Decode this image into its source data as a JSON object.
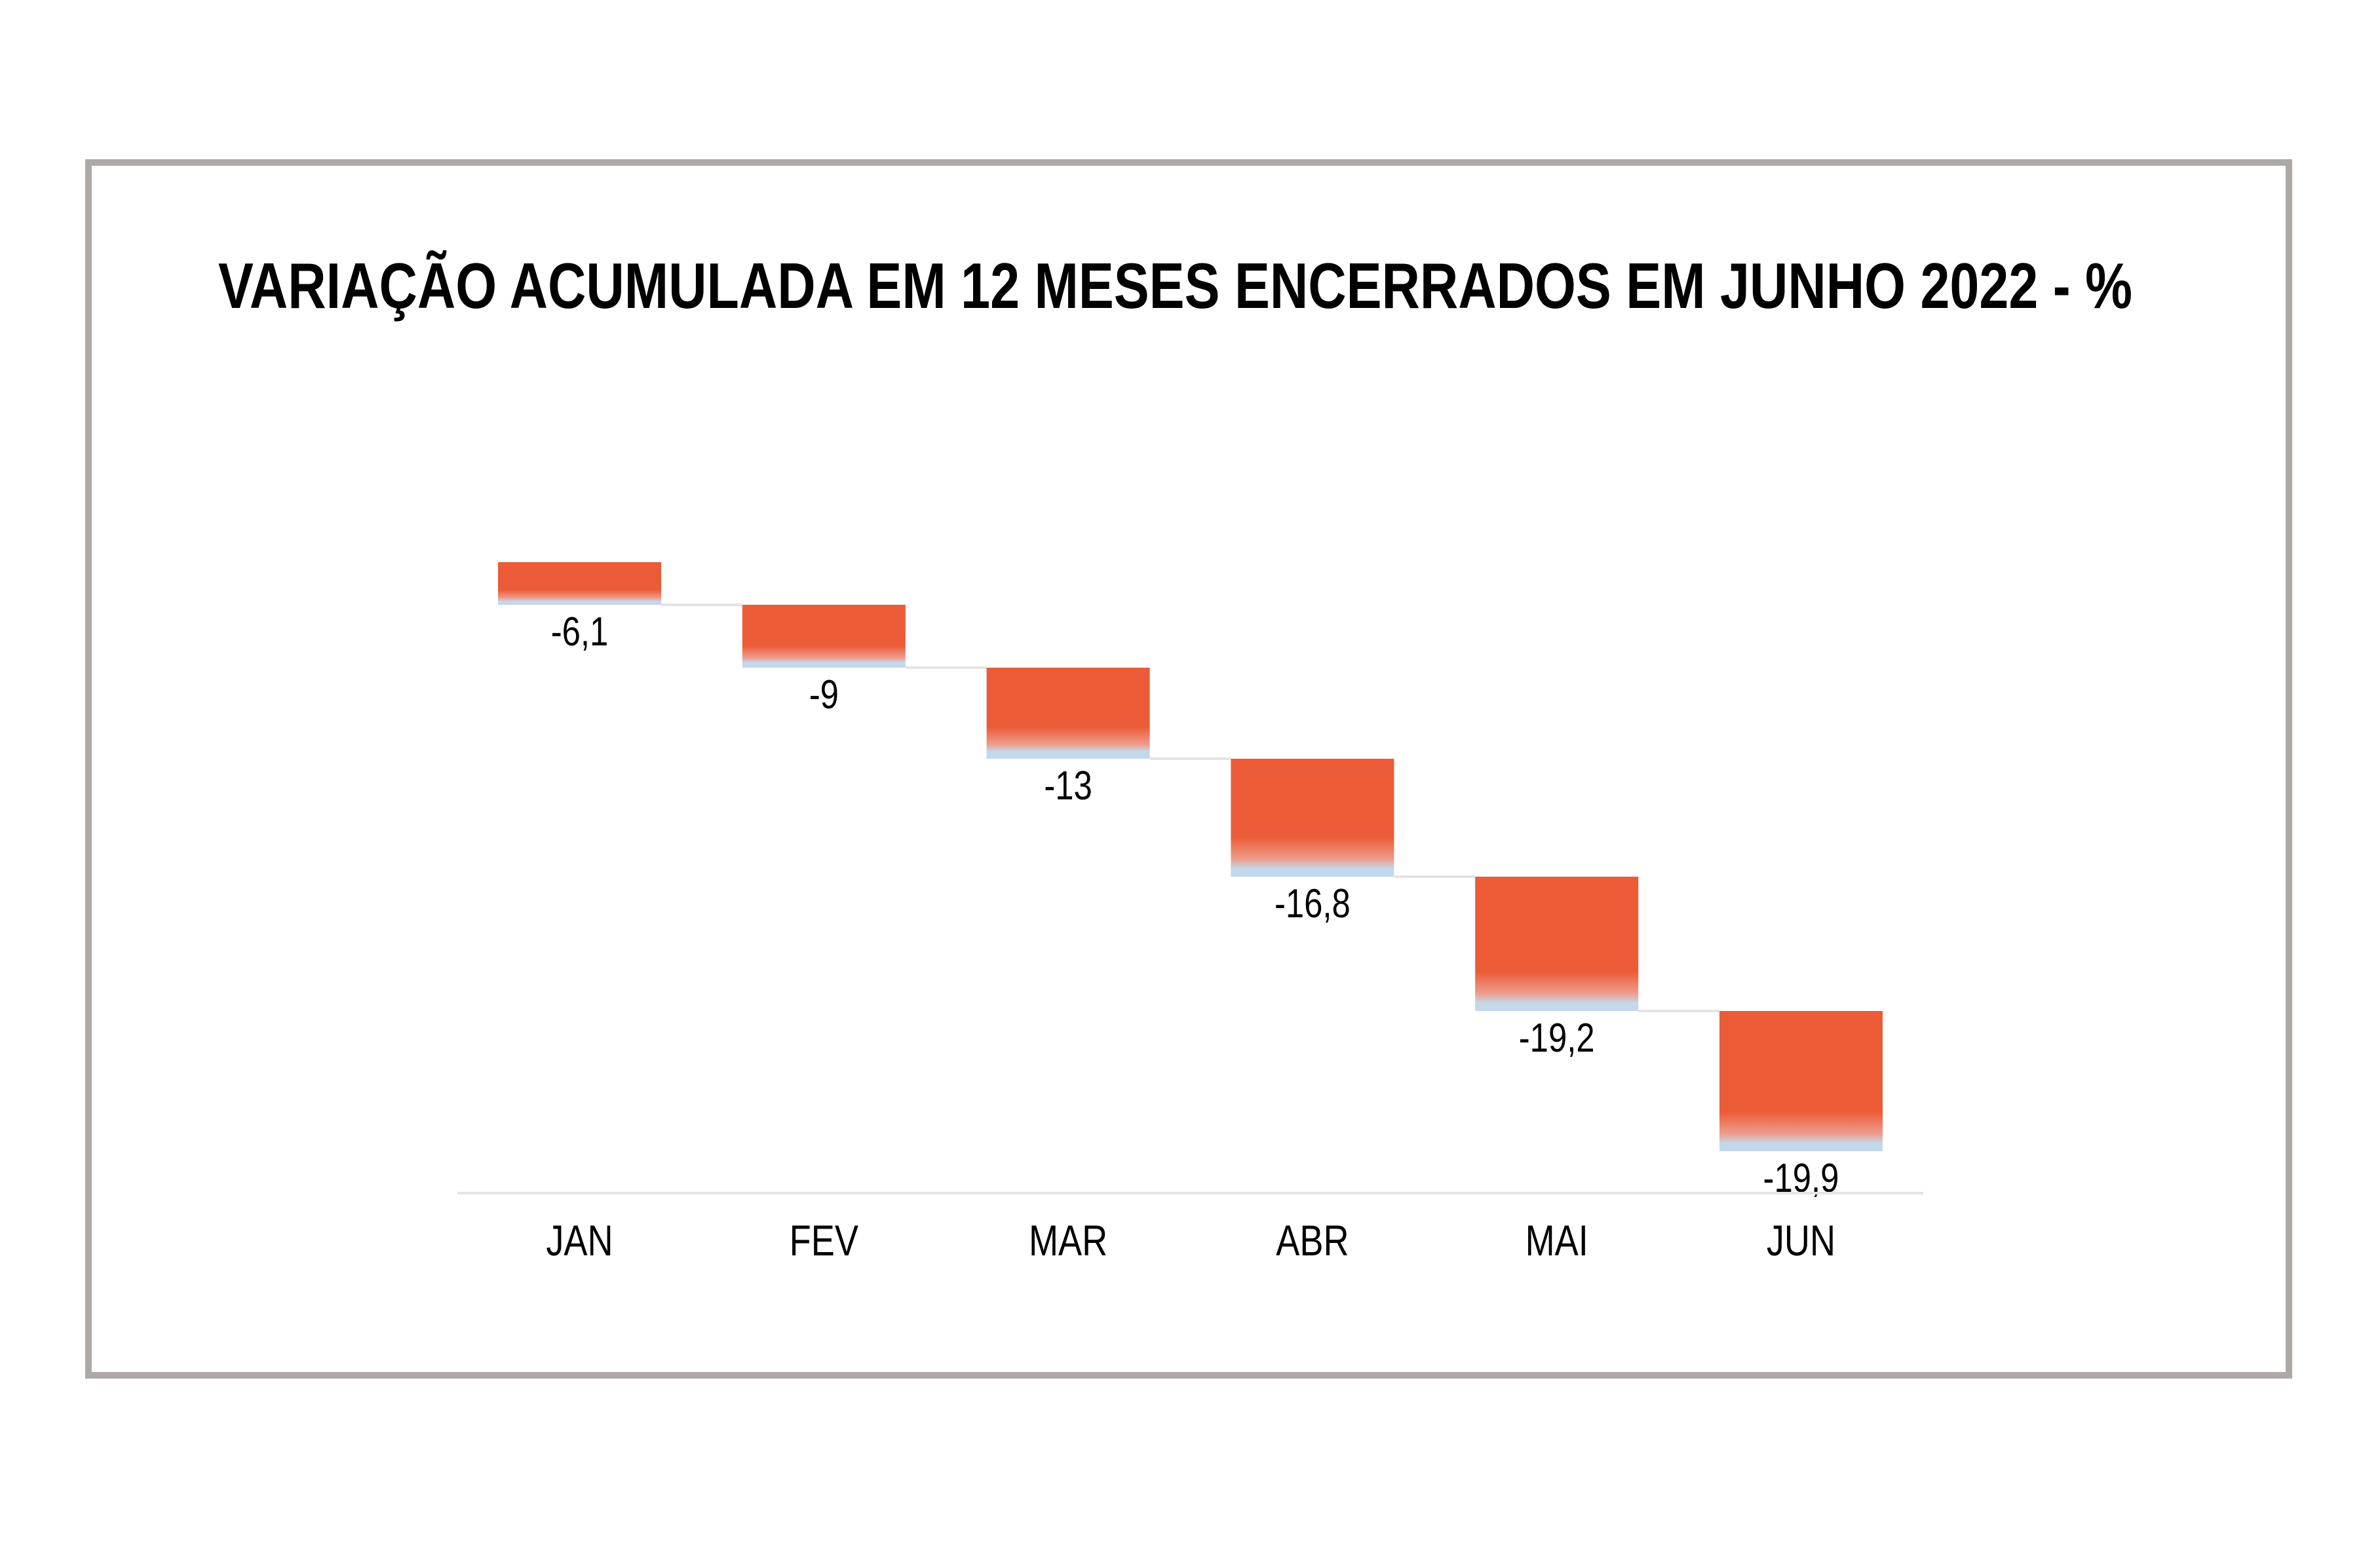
{
  "chart_data": {
    "type": "waterfall",
    "title": "VARIAÇÃO ACUMULADA EM 12 MESES ENCERRADOS EM JUNHO 2022 - %",
    "xlabel": "",
    "ylabel": "",
    "grid": false,
    "legend": "none",
    "categories": [
      "JAN",
      "FEV",
      "MAR",
      "ABR",
      "MAI",
      "JUN"
    ],
    "values": [
      -6.1,
      -9,
      -13,
      -16.8,
      -19.2,
      -19.9
    ],
    "value_labels": [
      "-6,1",
      "-9",
      "-13",
      "-16,8",
      "-19,2",
      "-19,9"
    ],
    "baseline": 0,
    "colors": {
      "bar_top": "#EC5B37",
      "bar_fade": "#EE9C8C",
      "bar_bottom": "#C3D8EA",
      "connector": "#E4E4E4",
      "axis": "#E4E4E4",
      "frame": "#ADA9A7",
      "text": "#000000"
    }
  }
}
